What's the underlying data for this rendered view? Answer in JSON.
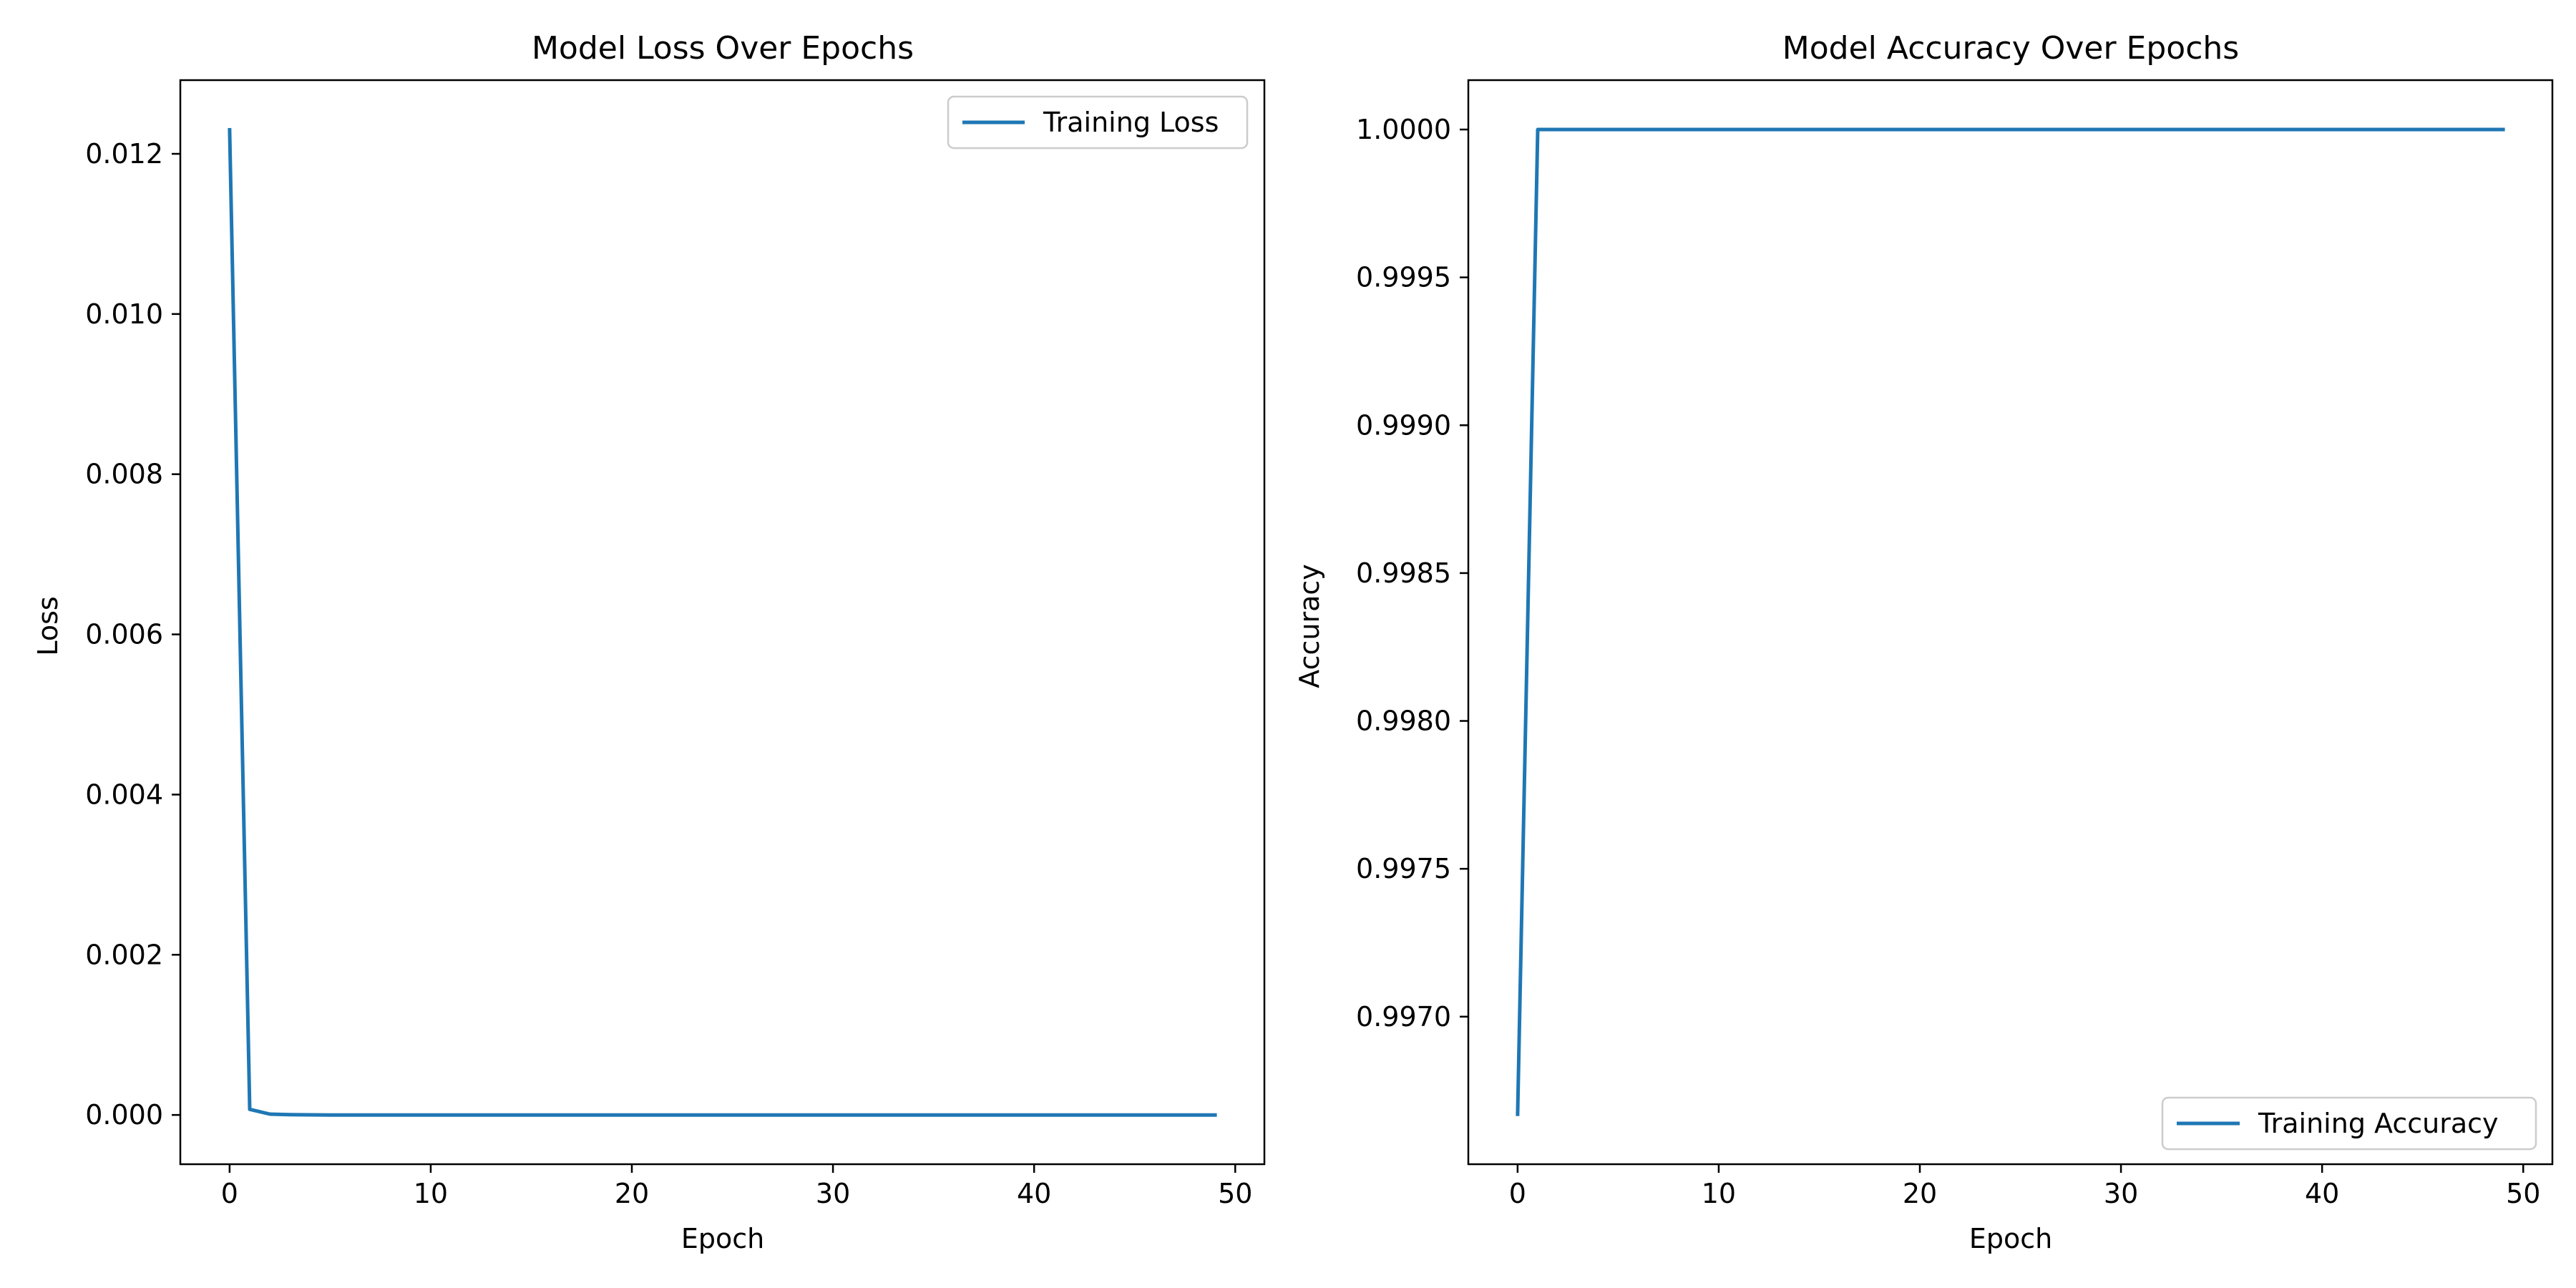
{
  "chart_data": [
    {
      "type": "line",
      "title": "Model Loss Over Epochs",
      "xlabel": "Epoch",
      "ylabel": "Loss",
      "xlim": [
        -2.45,
        51.45
      ],
      "ylim": [
        -0.000615,
        0.01292
      ],
      "xticks": [
        0,
        10,
        20,
        30,
        40,
        50
      ],
      "xtick_labels": [
        "0",
        "10",
        "20",
        "30",
        "40",
        "50"
      ],
      "yticks": [
        0.0,
        0.002,
        0.004,
        0.006,
        0.008,
        0.01,
        0.012
      ],
      "ytick_labels": [
        "0.000",
        "0.002",
        "0.004",
        "0.006",
        "0.008",
        "0.010",
        "0.012"
      ],
      "grid": false,
      "legend_position": "top-right",
      "series": [
        {
          "name": "Training Loss",
          "color": "#1f77b4",
          "x": [
            0,
            1,
            2,
            3,
            4,
            5,
            6,
            7,
            8,
            9,
            10,
            11,
            12,
            13,
            14,
            15,
            16,
            17,
            18,
            19,
            20,
            21,
            22,
            23,
            24,
            25,
            26,
            27,
            28,
            29,
            30,
            31,
            32,
            33,
            34,
            35,
            36,
            37,
            38,
            39,
            40,
            41,
            42,
            43,
            44,
            45,
            46,
            47,
            48,
            49
          ],
          "y": [
            0.0123,
            7e-05,
            1e-05,
            3e-06,
            1e-06,
            0,
            0,
            0,
            0,
            0,
            0,
            0,
            0,
            0,
            0,
            0,
            0,
            0,
            0,
            0,
            0,
            0,
            0,
            0,
            0,
            0,
            0,
            0,
            0,
            0,
            0,
            0,
            0,
            0,
            0,
            0,
            0,
            0,
            0,
            0,
            0,
            0,
            0,
            0,
            0,
            0,
            0,
            0,
            0,
            0
          ]
        }
      ]
    },
    {
      "type": "line",
      "title": "Model Accuracy Over Epochs",
      "xlabel": "Epoch",
      "ylabel": "Accuracy",
      "xlim": [
        -2.45,
        51.45
      ],
      "ylim": [
        0.996501,
        1.000167
      ],
      "xticks": [
        0,
        10,
        20,
        30,
        40,
        50
      ],
      "xtick_labels": [
        "0",
        "10",
        "20",
        "30",
        "40",
        "50"
      ],
      "yticks": [
        0.997,
        0.9975,
        0.998,
        0.9985,
        0.999,
        0.9995,
        1.0
      ],
      "ytick_labels": [
        "0.9970",
        "0.9975",
        "0.9980",
        "0.9985",
        "0.9990",
        "0.9995",
        "1.0000"
      ],
      "grid": false,
      "legend_position": "bottom-right",
      "series": [
        {
          "name": "Training Accuracy",
          "color": "#1f77b4",
          "x": [
            0,
            1,
            2,
            3,
            4,
            5,
            6,
            7,
            8,
            9,
            10,
            11,
            12,
            13,
            14,
            15,
            16,
            17,
            18,
            19,
            20,
            21,
            22,
            23,
            24,
            25,
            26,
            27,
            28,
            29,
            30,
            31,
            32,
            33,
            34,
            35,
            36,
            37,
            38,
            39,
            40,
            41,
            42,
            43,
            44,
            45,
            46,
            47,
            48,
            49
          ],
          "y": [
            0.99667,
            1,
            1,
            1,
            1,
            1,
            1,
            1,
            1,
            1,
            1,
            1,
            1,
            1,
            1,
            1,
            1,
            1,
            1,
            1,
            1,
            1,
            1,
            1,
            1,
            1,
            1,
            1,
            1,
            1,
            1,
            1,
            1,
            1,
            1,
            1,
            1,
            1,
            1,
            1,
            1,
            1,
            1,
            1,
            1,
            1,
            1,
            1,
            1,
            1
          ]
        }
      ]
    }
  ]
}
